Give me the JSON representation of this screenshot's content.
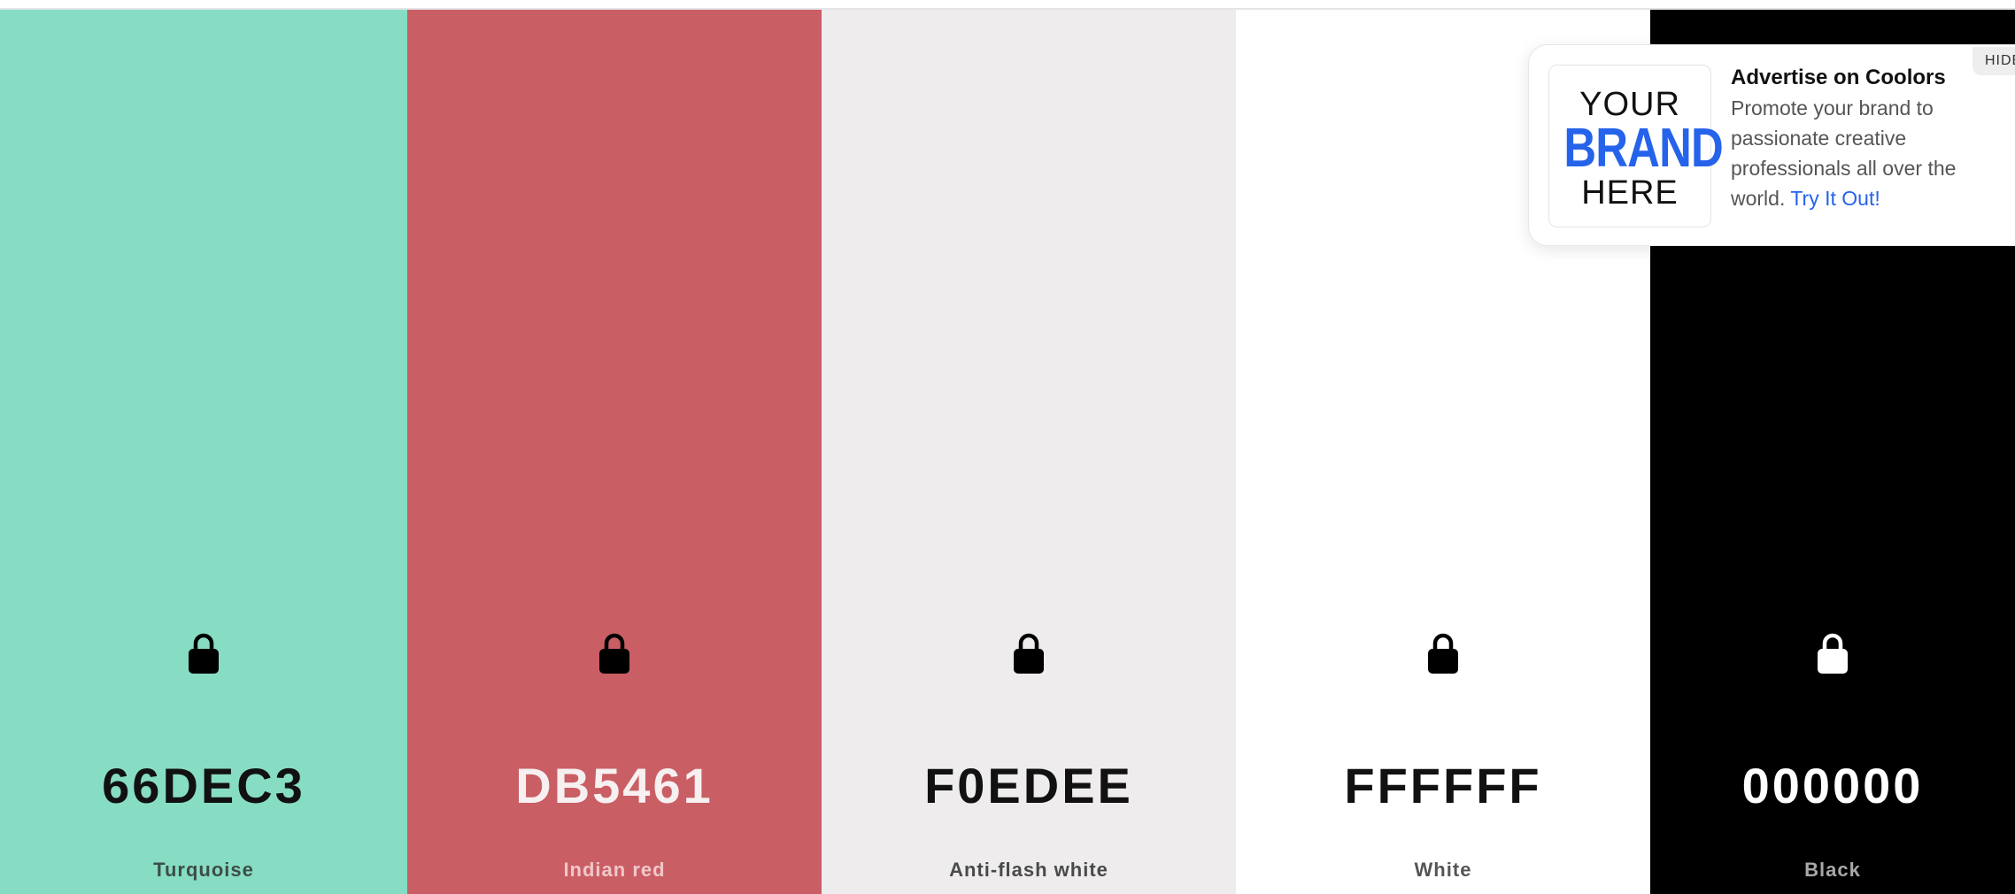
{
  "palette": {
    "colors": [
      {
        "hex": "66DEC3",
        "name": "Turquoise",
        "bg": "#87ddc4",
        "text": "#111111",
        "subtext": "#3d4d47",
        "lock": "#000000"
      },
      {
        "hex": "DB5461",
        "name": "Indian red",
        "bg": "#ca5e65",
        "text": "#f7f0f0",
        "subtext": "#f1c7c9",
        "lock": "#000000"
      },
      {
        "hex": "F0EDEE",
        "name": "Anti-flash white",
        "bg": "#eeeced",
        "text": "#111111",
        "subtext": "#4a4a4a",
        "lock": "#000000"
      },
      {
        "hex": "FFFFFF",
        "name": "White",
        "bg": "#ffffff",
        "text": "#111111",
        "subtext": "#555555",
        "lock": "#000000"
      },
      {
        "hex": "000000",
        "name": "Black",
        "bg": "#000000",
        "text": "#ffffff",
        "subtext": "#a8a8a8",
        "lock": "#ffffff"
      }
    ]
  },
  "ad": {
    "logo_line1": "YOUR",
    "logo_line2": "BRAND",
    "logo_line3": "HERE",
    "title": "Advertise on Coolors",
    "body": "Promote your brand to passionate creative professionals all over the world.",
    "link": "Try It Out!",
    "hide": "HIDE"
  },
  "icons": {
    "lock": "lock-icon"
  },
  "colors": {
    "accent": "#2563eb"
  }
}
